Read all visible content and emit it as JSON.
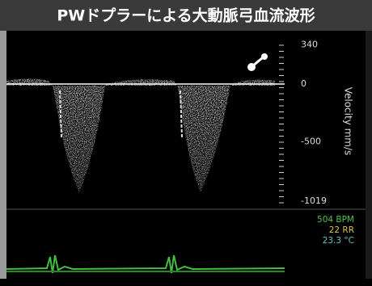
{
  "header": {
    "title": "PWドプラーによる大動脈弓血流波形"
  },
  "velocity_scale": {
    "label": "Velocity mm/s",
    "ticks": [
      340,
      0,
      -500,
      -1019
    ]
  },
  "vitals": [
    {
      "text": "504 BPM",
      "color": "#4fc24f"
    },
    {
      "text": "22 RR",
      "color": "#d8c24a"
    },
    {
      "text": "23.3 °C",
      "color": "#5fc6c6"
    }
  ]
}
